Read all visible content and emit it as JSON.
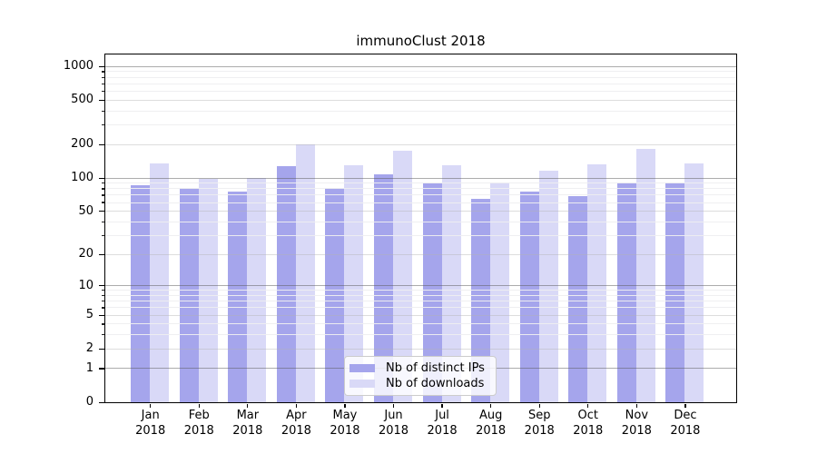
{
  "chart_data": {
    "type": "bar",
    "title": "immunoClust 2018",
    "categories": [
      {
        "month": "Jan",
        "year": "2018"
      },
      {
        "month": "Feb",
        "year": "2018"
      },
      {
        "month": "Mar",
        "year": "2018"
      },
      {
        "month": "Apr",
        "year": "2018"
      },
      {
        "month": "May",
        "year": "2018"
      },
      {
        "month": "Jun",
        "year": "2018"
      },
      {
        "month": "Jul",
        "year": "2018"
      },
      {
        "month": "Aug",
        "year": "2018"
      },
      {
        "month": "Sep",
        "year": "2018"
      },
      {
        "month": "Oct",
        "year": "2018"
      },
      {
        "month": "Nov",
        "year": "2018"
      },
      {
        "month": "Dec",
        "year": "2018"
      }
    ],
    "series": [
      {
        "name": "Nb of distinct IPs",
        "color": "#a5a5ec",
        "values": [
          86,
          80,
          74,
          127,
          80,
          107,
          88,
          64,
          75,
          68,
          91,
          91
        ]
      },
      {
        "name": "Nb of downloads",
        "color": "#d9d9f7",
        "values": [
          134,
          97,
          100,
          199,
          129,
          173,
          129,
          90,
          115,
          131,
          182,
          133
        ]
      }
    ],
    "y_ticks": [
      0,
      1,
      2,
      5,
      10,
      20,
      50,
      100,
      200,
      500,
      1000
    ],
    "y_major_gridlines": [
      1,
      10,
      100,
      1000
    ],
    "y_scale": "log1p",
    "ylim": [
      0,
      1280
    ],
    "xlabel": "",
    "ylabel": "",
    "grid": true,
    "legend_position": "lower center"
  }
}
